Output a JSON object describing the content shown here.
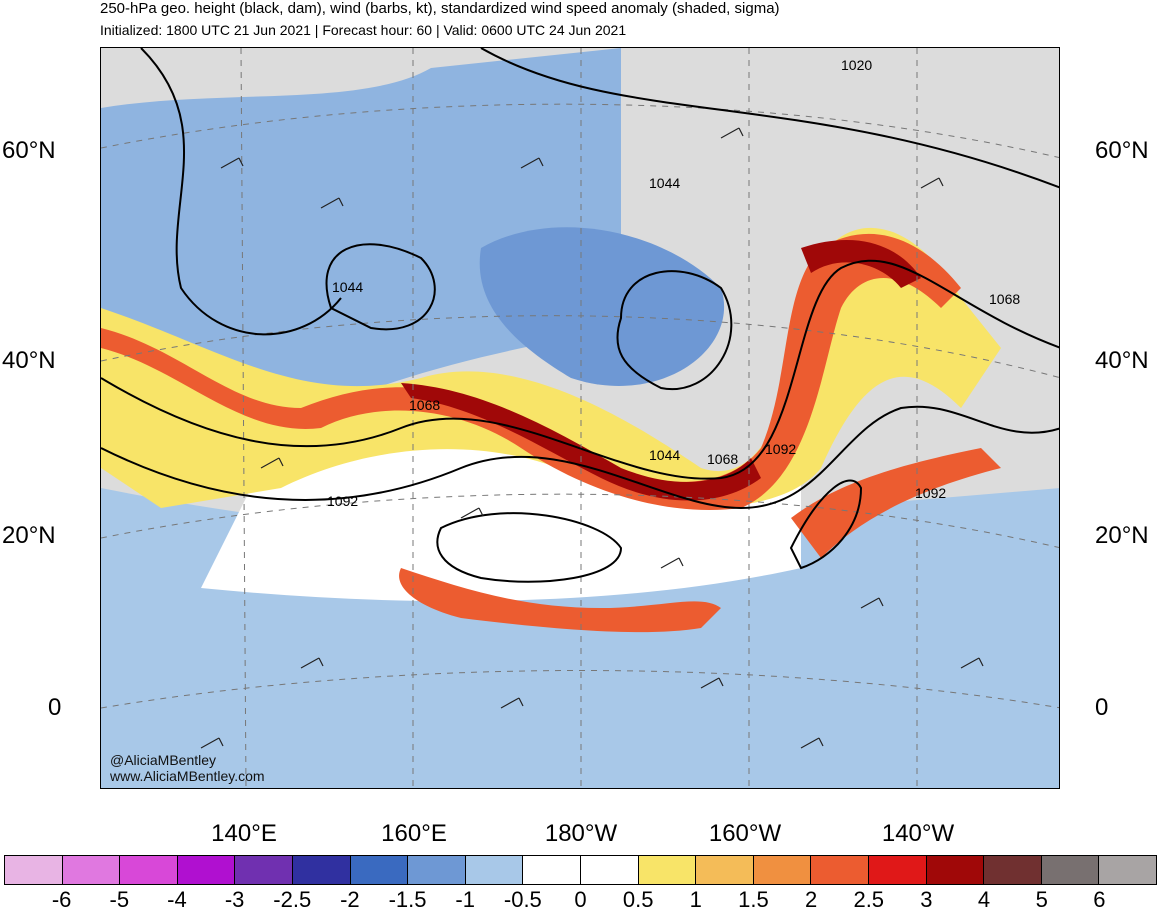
{
  "header": {
    "title": "250-hPa geo. height (black, dam), wind (barbs, kt), standardized wind speed anomaly (shaded, sigma)",
    "subtitle": "Initialized: 1800 UTC 21 Jun 2021 | Forecast hour: 60 | Valid: 0600 UTC 24 Jun 2021"
  },
  "map": {
    "lat_labels": [
      "60°N",
      "40°N",
      "20°N",
      "0"
    ],
    "lon_labels": [
      "140°E",
      "160°E",
      "180°W",
      "160°W",
      "140°W"
    ],
    "contour_labels": [
      "1020",
      "1044",
      "1044",
      "1068",
      "1044",
      "1068",
      "1092",
      "1068",
      "1092",
      "1092"
    ],
    "credit": [
      "@AliciaMBentley",
      "www.AliciaMBentley.com"
    ]
  },
  "colorbar": {
    "labels": [
      "-6",
      "-5",
      "-4",
      "-3",
      "-2.5",
      "-2",
      "-1.5",
      "-1",
      "-0.5",
      "0",
      "0.5",
      "1",
      "1.5",
      "2",
      "2.5",
      "3",
      "4",
      "5",
      "6"
    ],
    "colors": [
      "#e8b4e4",
      "#e078e0",
      "#d848d8",
      "#b010d0",
      "#7030b0",
      "#3030a0",
      "#3a6ac0",
      "#6e98d4",
      "#a8c8e8",
      "#ffffff",
      "#ffffff",
      "#f8e468",
      "#f4bc58",
      "#f09040",
      "#ec5c30",
      "#e01818",
      "#a00808",
      "#703030",
      "#787070",
      "#a8a4a4"
    ]
  }
}
